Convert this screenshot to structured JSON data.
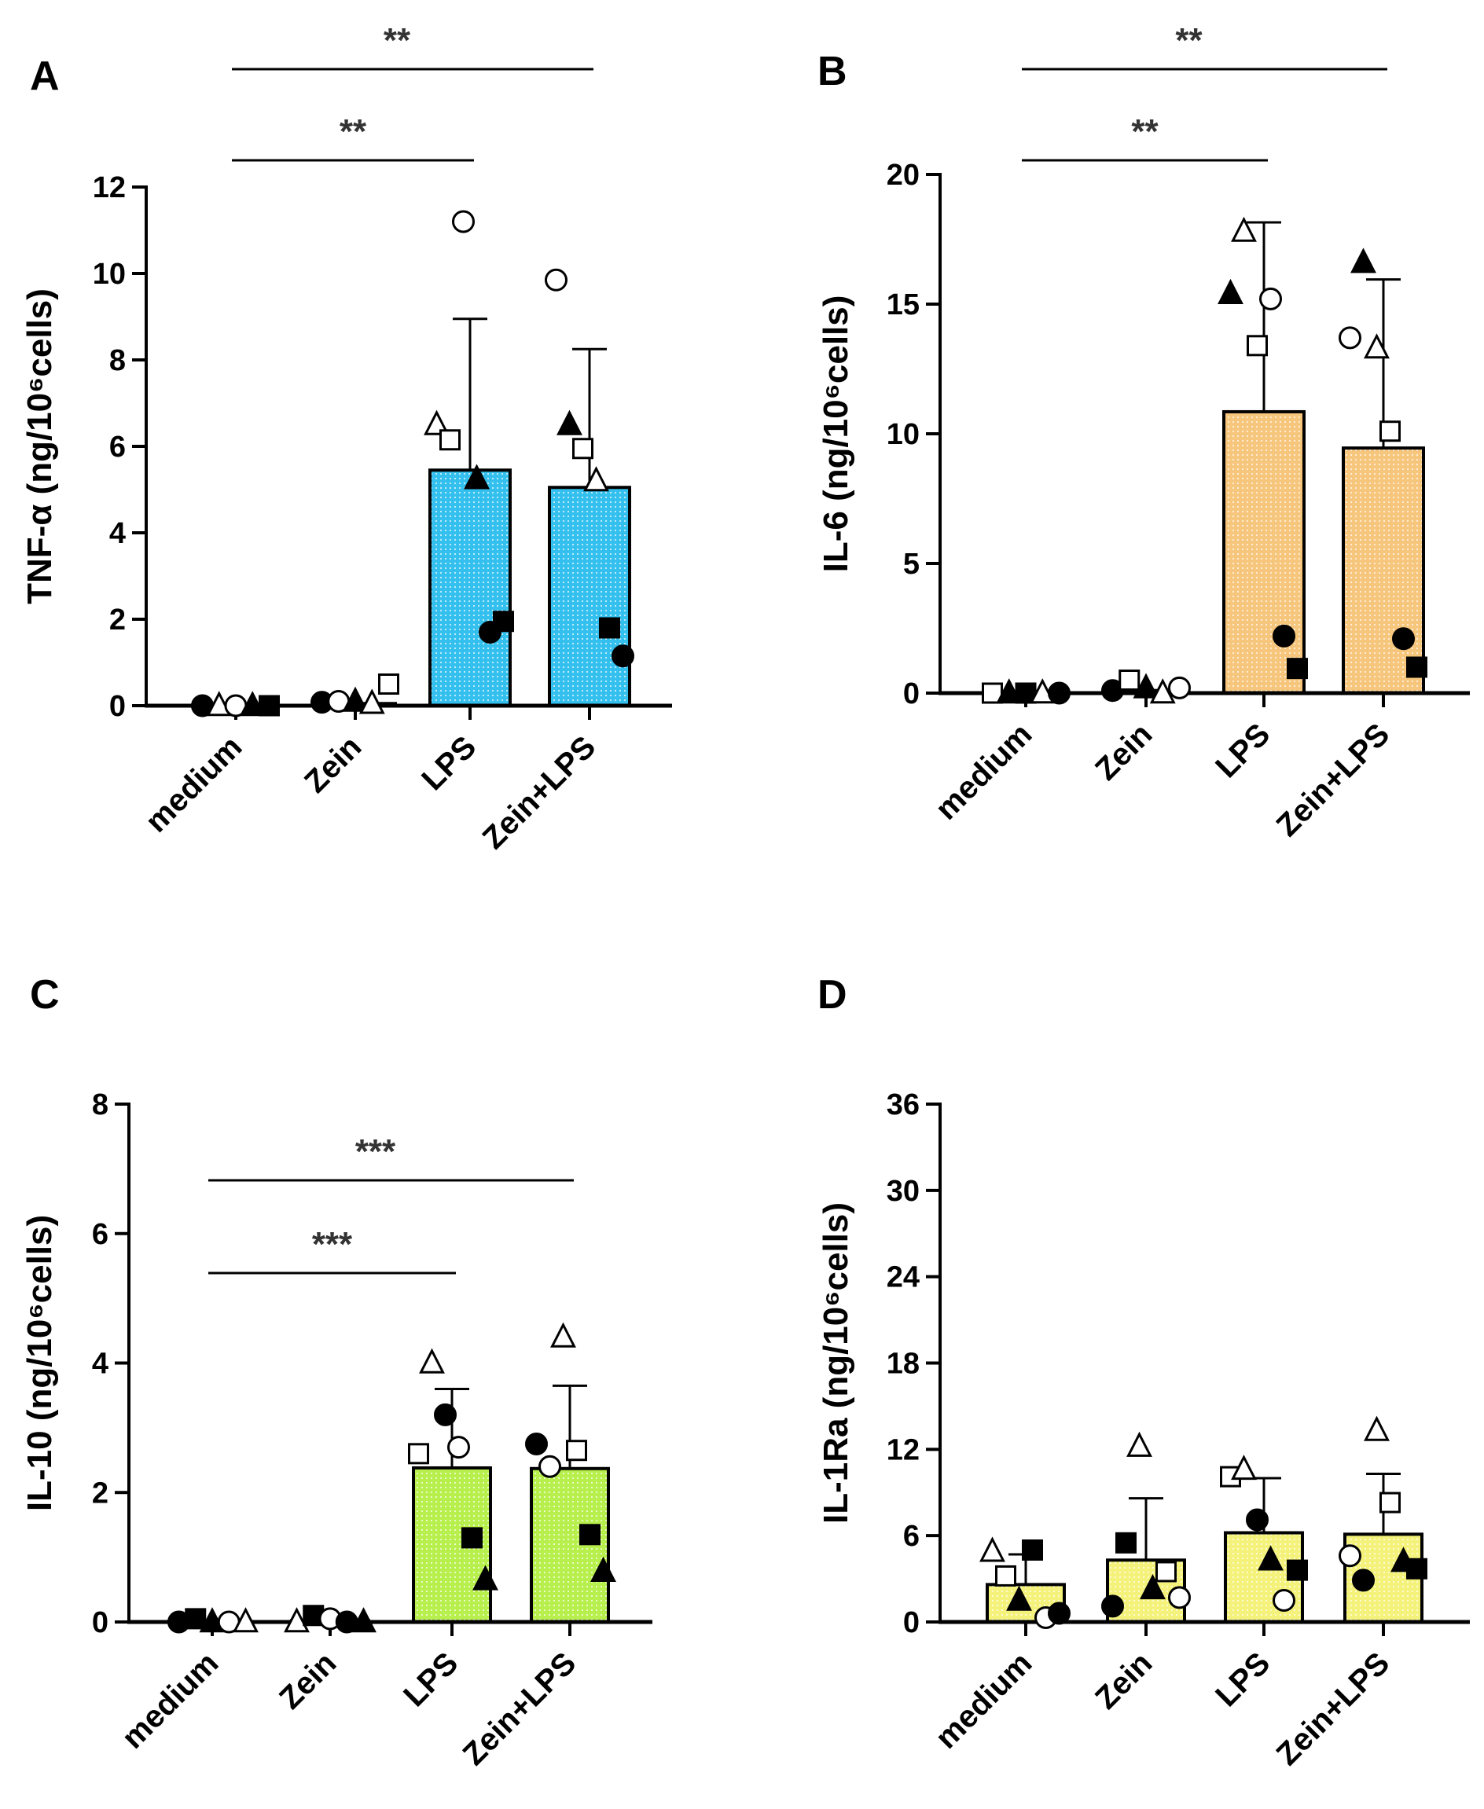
{
  "colors": {
    "A": "#34c0ee",
    "B": "#f7c67d",
    "C": "#b7ef4c",
    "D": "#f4f27a",
    "axis": "#000000"
  },
  "chart_data": [
    {
      "panel": "A",
      "type": "bar",
      "ylabel": "TNF-α (ng/10⁶cells)",
      "ylim": [
        0,
        12
      ],
      "yticks": [
        "0",
        "2",
        "4",
        "6",
        "8",
        "10",
        "12"
      ],
      "categories": [
        "medium",
        "Zein",
        "LPS",
        "Zein+LPS"
      ],
      "values": [
        0.0,
        0.05,
        5.45,
        5.05
      ],
      "error": [
        0,
        0,
        3.5,
        3.2
      ],
      "points": [
        [
          [
            "circle-filled",
            0.0
          ],
          [
            "triangle-open",
            0.0
          ],
          [
            "circle-open",
            0.0
          ],
          [
            "triangle-filled",
            0.0
          ],
          [
            "square-filled",
            0.0
          ]
        ],
        [
          [
            "circle-filled",
            0.08
          ],
          [
            "circle-open",
            0.1
          ],
          [
            "triangle-filled",
            0.1
          ],
          [
            "triangle-open",
            0.05
          ],
          [
            "square-open",
            0.5
          ]
        ],
        [
          [
            "triangle-open",
            6.5
          ],
          [
            "square-open",
            6.15
          ],
          [
            "circle-open",
            11.2
          ],
          [
            "triangle-filled",
            5.25
          ],
          [
            "circle-filled",
            1.7
          ],
          [
            "square-filled",
            1.95
          ]
        ],
        [
          [
            "circle-open",
            9.85
          ],
          [
            "triangle-filled",
            6.5
          ],
          [
            "square-open",
            5.95
          ],
          [
            "triangle-open",
            5.2
          ],
          [
            "square-filled",
            1.8
          ],
          [
            "circle-filled",
            1.15
          ]
        ]
      ],
      "significance": [
        {
          "from": 0,
          "to": 3,
          "label": "**"
        },
        {
          "from": 0,
          "to": 2,
          "label": "**"
        }
      ]
    },
    {
      "panel": "B",
      "type": "bar",
      "ylabel": "IL-6 (ng/10⁶cells)",
      "ylim": [
        0,
        20
      ],
      "yticks": [
        "0",
        "5",
        "10",
        "15",
        "20"
      ],
      "categories": [
        "medium",
        "Zein",
        "LPS",
        "Zein+LPS"
      ],
      "values": [
        0.0,
        0.1,
        10.85,
        9.45
      ],
      "error": [
        0,
        0,
        7.3,
        6.5
      ],
      "points": [
        [
          [
            "square-open",
            0.0
          ],
          [
            "triangle-filled",
            0.0
          ],
          [
            "square-filled",
            0.0
          ],
          [
            "triangle-open",
            0.0
          ],
          [
            "circle-filled",
            0.0
          ]
        ],
        [
          [
            "circle-filled",
            0.1
          ],
          [
            "square-open",
            0.5
          ],
          [
            "triangle-filled",
            0.2
          ],
          [
            "triangle-open",
            0.0
          ],
          [
            "circle-open",
            0.2
          ]
        ],
        [
          [
            "triangle-filled",
            15.4
          ],
          [
            "triangle-open",
            17.8
          ],
          [
            "square-open",
            13.4
          ],
          [
            "circle-open",
            15.2
          ],
          [
            "circle-filled",
            2.2
          ],
          [
            "square-filled",
            0.95
          ]
        ],
        [
          [
            "circle-open",
            13.7
          ],
          [
            "triangle-filled",
            16.6
          ],
          [
            "triangle-open",
            13.3
          ],
          [
            "square-open",
            10.1
          ],
          [
            "circle-filled",
            2.1
          ],
          [
            "square-filled",
            1.0
          ]
        ]
      ],
      "significance": [
        {
          "from": 0,
          "to": 3,
          "label": "**"
        },
        {
          "from": 0,
          "to": 2,
          "label": "**"
        }
      ]
    },
    {
      "panel": "C",
      "type": "bar",
      "ylabel": "IL-10 (ng/10⁶cells)",
      "ylim": [
        0,
        8
      ],
      "yticks": [
        "0",
        "2",
        "4",
        "6",
        "8"
      ],
      "categories": [
        "medium",
        "Zein",
        "LPS",
        "Zein+LPS"
      ],
      "values": [
        0.0,
        0.02,
        2.38,
        2.37
      ],
      "error": [
        0,
        0,
        1.22,
        1.28
      ],
      "points": [
        [
          [
            "circle-filled",
            0.0
          ],
          [
            "square-filled",
            0.05
          ],
          [
            "triangle-filled",
            0.0
          ],
          [
            "circle-open",
            0.0
          ],
          [
            "triangle-open",
            0.0
          ]
        ],
        [
          [
            "triangle-open",
            0.0
          ],
          [
            "square-filled",
            0.1
          ],
          [
            "circle-open",
            0.05
          ],
          [
            "circle-filled",
            0.0
          ],
          [
            "triangle-filled",
            0.0
          ]
        ],
        [
          [
            "square-open",
            2.6
          ],
          [
            "triangle-open",
            4.0
          ],
          [
            "circle-filled",
            3.2
          ],
          [
            "circle-open",
            2.7
          ],
          [
            "square-filled",
            1.3
          ],
          [
            "triangle-filled",
            0.65
          ]
        ],
        [
          [
            "circle-filled",
            2.75
          ],
          [
            "circle-open",
            2.4
          ],
          [
            "triangle-open",
            4.4
          ],
          [
            "square-open",
            2.65
          ],
          [
            "square-filled",
            1.35
          ],
          [
            "triangle-filled",
            0.78
          ]
        ]
      ],
      "significance": [
        {
          "from": 0,
          "to": 3,
          "label": "***"
        },
        {
          "from": 0,
          "to": 2,
          "label": "***"
        }
      ]
    },
    {
      "panel": "D",
      "type": "bar",
      "ylabel": "IL-1Ra (ng/10⁶cells)",
      "ylim": [
        0,
        36
      ],
      "yticks": [
        "0",
        "6",
        "12",
        "18",
        "24",
        "30",
        "36"
      ],
      "categories": [
        "medium",
        "Zein",
        "LPS",
        "Zein+LPS"
      ],
      "values": [
        2.6,
        4.3,
        6.2,
        6.1
      ],
      "error": [
        2.1,
        4.3,
        3.8,
        4.2
      ],
      "points": [
        [
          [
            "triangle-open",
            4.9
          ],
          [
            "square-open",
            3.2
          ],
          [
            "triangle-filled",
            1.5
          ],
          [
            "square-filled",
            5.0
          ],
          [
            "circle-open",
            0.3
          ],
          [
            "circle-filled",
            0.6
          ]
        ],
        [
          [
            "circle-filled",
            1.1
          ],
          [
            "square-filled",
            5.5
          ],
          [
            "triangle-open",
            12.2
          ],
          [
            "triangle-filled",
            2.3
          ],
          [
            "square-open",
            3.5
          ],
          [
            "circle-open",
            1.7
          ]
        ],
        [
          [
            "square-open",
            10.1
          ],
          [
            "triangle-open",
            10.6
          ],
          [
            "circle-filled",
            7.1
          ],
          [
            "triangle-filled",
            4.3
          ],
          [
            "circle-open",
            1.5
          ],
          [
            "square-filled",
            3.6
          ]
        ],
        [
          [
            "circle-open",
            4.6
          ],
          [
            "circle-filled",
            2.9
          ],
          [
            "triangle-open",
            13.3
          ],
          [
            "square-open",
            8.3
          ],
          [
            "triangle-filled",
            4.2
          ],
          [
            "square-filled",
            3.7
          ]
        ]
      ],
      "significance": []
    }
  ]
}
